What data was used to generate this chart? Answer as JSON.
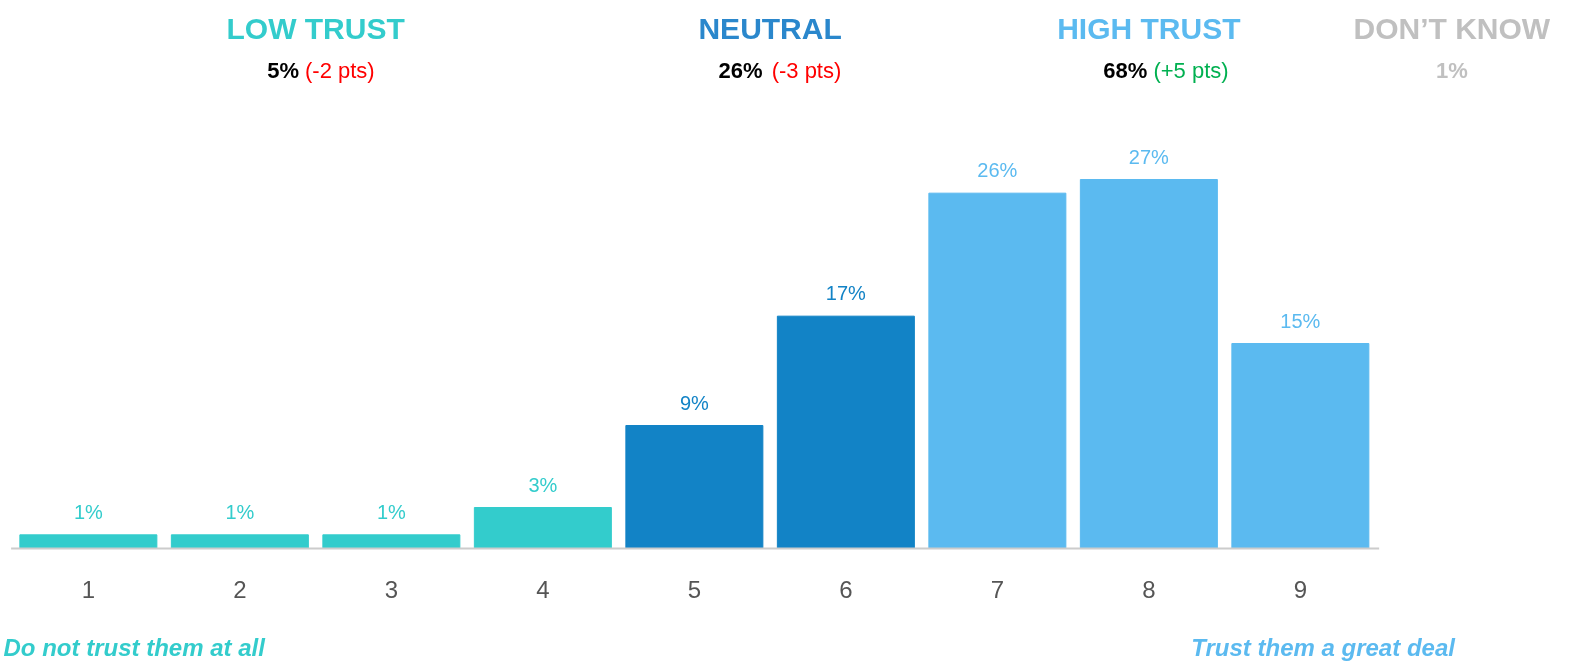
{
  "chart_data": {
    "type": "bar",
    "categories": [
      "1",
      "2",
      "3",
      "4",
      "5",
      "6",
      "7",
      "8",
      "9"
    ],
    "values": [
      1,
      1,
      1,
      3,
      9,
      17,
      26,
      27,
      15
    ],
    "colors": [
      "#33cccc",
      "#33cccc",
      "#33cccc",
      "#33cccc",
      "#1283c6",
      "#1283c6",
      "#5bbaf0",
      "#5bbaf0",
      "#5bbaf0"
    ],
    "value_labels": [
      "1%",
      "1%",
      "1%",
      "3%",
      "9%",
      "17%",
      "26%",
      "27%",
      "15%"
    ],
    "annotations": [
      "LOW TRUST",
      "5%",
      "(-2 pts)",
      "NEUTRAL",
      "26%",
      "(-3 pts)",
      "HIGH TRUST",
      "68%",
      "(+5 pts)",
      "DON’T KNOW",
      "1%",
      "Do not trust them at all",
      "Trust them a great deal"
    ]
  }
}
